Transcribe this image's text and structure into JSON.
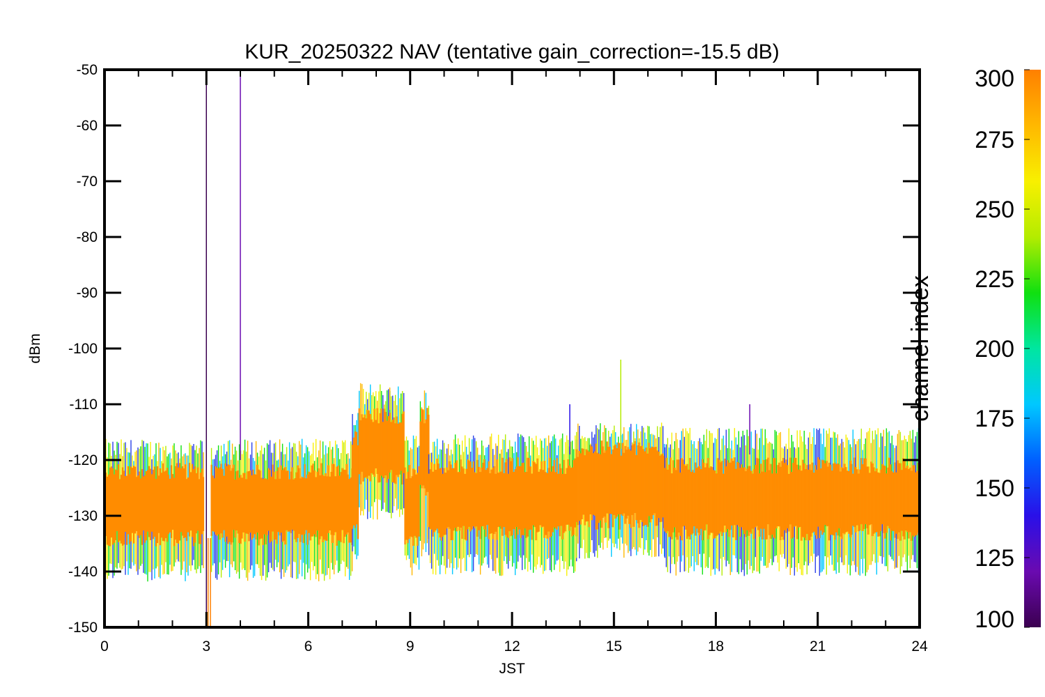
{
  "chart_data": {
    "type": "line",
    "title": "KUR_20250322 NAV (tentative gain_correction=-15.5 dB)",
    "xlabel": "JST",
    "ylabel": "dBm",
    "xlim": [
      0,
      24
    ],
    "ylim": [
      -150,
      -50
    ],
    "x_ticks": [
      "0",
      "3",
      "6",
      "9",
      "12",
      "15",
      "18",
      "21",
      "24"
    ],
    "y_ticks": [
      "-50",
      "-60",
      "-70",
      "-80",
      "-90",
      "-100",
      "-110",
      "-120",
      "-130",
      "-140",
      "-150"
    ],
    "grid": false,
    "colorbar": {
      "label": "channel index",
      "range": [
        100,
        300
      ],
      "ticks": [
        "300",
        "275",
        "250",
        "225",
        "200",
        "175",
        "150",
        "125",
        "100"
      ],
      "colormap": [
        "#3b0050",
        "#6a0ab0",
        "#2a10e8",
        "#0060ff",
        "#00c8ff",
        "#00e6a0",
        "#10e010",
        "#b4ec00",
        "#f8f000",
        "#ffb800",
        "#ff8000"
      ]
    },
    "series_color": "#ff8c00",
    "band_segments": [
      {
        "x": [
          0.0,
          2.95
        ],
        "median": -128.5,
        "core_low": -134,
        "core_high": -122,
        "env_low": -139,
        "env_high": -119
      },
      {
        "x": [
          3.15,
          7.3
        ],
        "median": -128.5,
        "core_low": -134,
        "core_high": -122,
        "env_low": -139,
        "env_high": -119
      },
      {
        "x": [
          7.3,
          7.5
        ],
        "median": -126,
        "core_low": -133,
        "core_high": -116,
        "env_low": -136,
        "env_high": -113
      },
      {
        "x": [
          7.5,
          8.85
        ],
        "median": -117,
        "core_low": -123,
        "core_high": -112,
        "env_low": -128,
        "env_high": -109
      },
      {
        "x": [
          8.85,
          9.3
        ],
        "median": -128,
        "core_low": -134,
        "core_high": -122,
        "env_low": -138,
        "env_high": -118
      },
      {
        "x": [
          9.3,
          9.55
        ],
        "median": -118,
        "core_low": -125,
        "core_high": -112,
        "env_low": -135,
        "env_high": -110
      },
      {
        "x": [
          9.55,
          13.9
        ],
        "median": -127,
        "core_low": -133,
        "core_high": -121,
        "env_low": -138,
        "env_high": -118
      },
      {
        "x": [
          13.9,
          16.5
        ],
        "median": -125,
        "core_low": -131,
        "core_high": -118,
        "env_low": -135,
        "env_high": -116
      },
      {
        "x": [
          16.5,
          24.0
        ],
        "median": -127,
        "core_low": -133,
        "core_high": -121,
        "env_low": -138,
        "env_high": -117
      }
    ],
    "spikes": [
      {
        "x": 3.0,
        "y_from": -150,
        "y_to": -51,
        "channel": 100
      },
      {
        "x": 4.0,
        "y_from": -120,
        "y_to": -50,
        "channel": 110
      },
      {
        "x": 3.05,
        "y_from": -150,
        "y_to": -134,
        "channel": 300
      },
      {
        "x": 3.12,
        "y_from": -150,
        "y_to": -134,
        "channel": 300
      },
      {
        "x": 15.2,
        "y_from": -118,
        "y_to": -102,
        "channel": 230
      },
      {
        "x": 13.7,
        "y_from": -119,
        "y_to": -110,
        "channel": 140
      },
      {
        "x": 19.0,
        "y_from": -119,
        "y_to": -110,
        "channel": 120
      },
      {
        "x": 8.4,
        "y_from": -111,
        "y_to": -107,
        "channel": 270
      }
    ]
  }
}
